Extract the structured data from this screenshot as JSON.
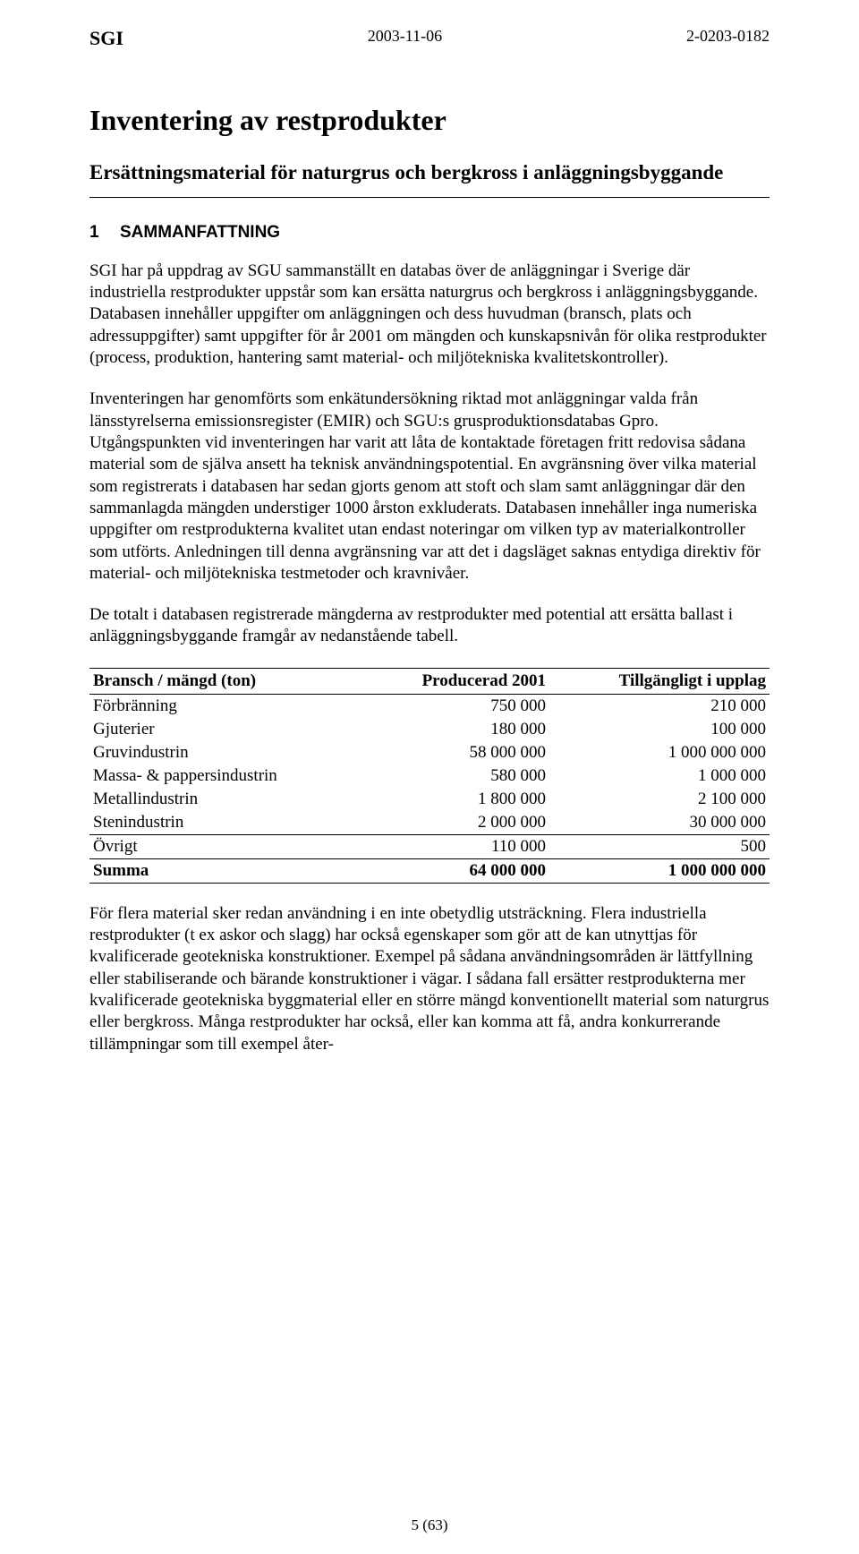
{
  "header": {
    "org": "SGI",
    "date": "2003-11-06",
    "docnum": "2-0203-0182"
  },
  "title": "Inventering av restprodukter",
  "subtitle": "Ersättningsmaterial för naturgrus och bergkross i anläggningsbyggande",
  "section": {
    "num": "1",
    "label": "SAMMANFATTNING"
  },
  "paragraphs": {
    "p1": "SGI har på uppdrag av SGU sammanställt en databas över de anläggningar i Sverige där industriella restprodukter uppstår som kan ersätta naturgrus och bergkross i anläggningsbyggande. Databasen innehåller uppgifter om anläggningen och dess huvudman (bransch, plats och adressuppgifter) samt uppgifter för år 2001 om mängden och kunskapsnivån för olika restprodukter (process, produktion, hantering samt material- och miljötekniska kvalitetskontroller).",
    "p2": "Inventeringen har genomförts som enkätundersökning riktad mot anläggningar valda från länsstyrelserna emissionsregister (EMIR) och SGU:s grusproduktionsdatabas Gpro. Utgångspunkten vid inventeringen har varit att låta de kontaktade företagen fritt redovisa sådana material som de själva ansett ha teknisk användningspotential. En avgränsning över vilka material som registrerats i databasen har sedan gjorts genom att stoft och slam samt anläggningar där den sammanlagda mängden understiger 1000 årston exkluderats. Databasen innehåller inga numeriska uppgifter om restprodukterna kvalitet utan endast noteringar om vilken typ av materialkontroller som utförts. Anledningen till denna avgränsning var att det i dagsläget saknas entydiga direktiv för material- och miljötekniska testmetoder och kravnivåer.",
    "p3": "De totalt i databasen registrerade mängderna av restprodukter med potential att ersätta ballast i anläggningsbyggande framgår av nedanstående tabell.",
    "p4": "För flera material sker redan användning i en inte obetydlig utsträckning. Flera industriella restprodukter (t ex askor och slagg) har också egenskaper som gör att de kan utnyttjas för kvalificerade geotekniska konstruktioner. Exempel på sådana användningsområden är lättfyllning eller stabiliserande och bärande konstruktioner i vägar. I sådana fall ersätter restprodukterna mer kvalificerade geotekniska byggmaterial eller en större mängd konventionellt material som naturgrus eller bergkross. Många restprodukter har också, eller kan komma att få, andra konkurrerande tillämpningar som till exempel åter-"
  },
  "table": {
    "headers": {
      "c1": "Bransch / mängd (ton)",
      "c2": "Producerad 2001",
      "c3": "Tillgängligt i upplag"
    },
    "rows": [
      {
        "c1": "Förbränning",
        "c2": "750 000",
        "c3": "210 000"
      },
      {
        "c1": "Gjuterier",
        "c2": "180 000",
        "c3": "100 000"
      },
      {
        "c1": "Gruvindustrin",
        "c2": "58 000 000",
        "c3": "1 000 000 000"
      },
      {
        "c1": "Massa- & pappersindustrin",
        "c2": "580 000",
        "c3": "1 000 000"
      },
      {
        "c1": "Metallindustrin",
        "c2": "1 800 000",
        "c3": "2 100 000"
      },
      {
        "c1": "Stenindustrin",
        "c2": "2 000 000",
        "c3": "30 000 000"
      },
      {
        "c1": "Övrigt",
        "c2": "110 000",
        "c3": "500"
      }
    ],
    "sum": {
      "c1": "Summa",
      "c2": "64 000 000",
      "c3": "1 000 000 000"
    }
  },
  "page_number": "5 (63)"
}
